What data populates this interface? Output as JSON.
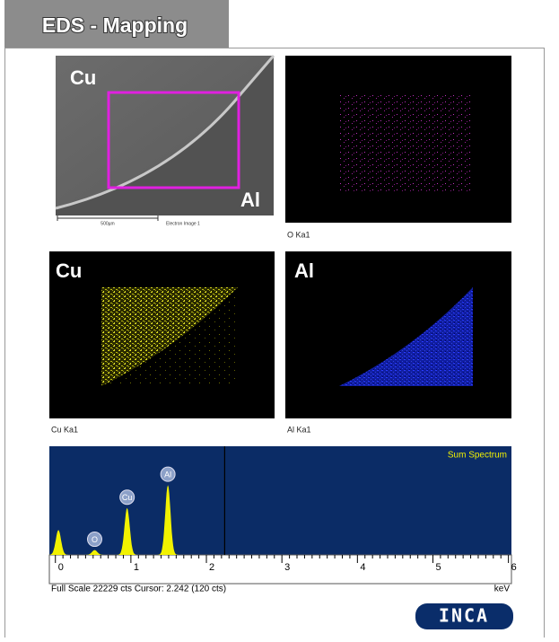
{
  "header": {
    "title": "EDS - Mapping"
  },
  "panels": [
    {
      "labels": [
        "Cu",
        "Al"
      ],
      "scale_bar": "500µm",
      "caption": "Electron Image 1"
    },
    {
      "caption": "O Ka1"
    },
    {
      "label": "Cu",
      "caption": "Cu Ka1"
    },
    {
      "label": "Al",
      "caption": "Al Ka1"
    }
  ],
  "chart_data": {
    "type": "spectrum",
    "title": "Sum Spectrum",
    "x_label": "keV",
    "xlim": [
      -0.08,
      6.04
    ],
    "xticks": [
      0,
      1,
      2,
      3,
      4,
      5,
      6
    ],
    "ylim": [
      0,
      22229
    ],
    "peaks": [
      {
        "label": null,
        "energy": 0.04,
        "counts": 5100
      },
      {
        "label": "O",
        "energy": 0.52,
        "counts": 1000
      },
      {
        "label": "Cu",
        "energy": 0.95,
        "counts": 9600
      },
      {
        "label": "Al",
        "energy": 1.49,
        "counts": 14300
      }
    ],
    "cursor": 2.242,
    "footer": "Full Scale 22229 cts Cursor: 2.242  (120 cts)",
    "color": "#f2f200",
    "background": "#0b2c66"
  },
  "logo": "INCA"
}
